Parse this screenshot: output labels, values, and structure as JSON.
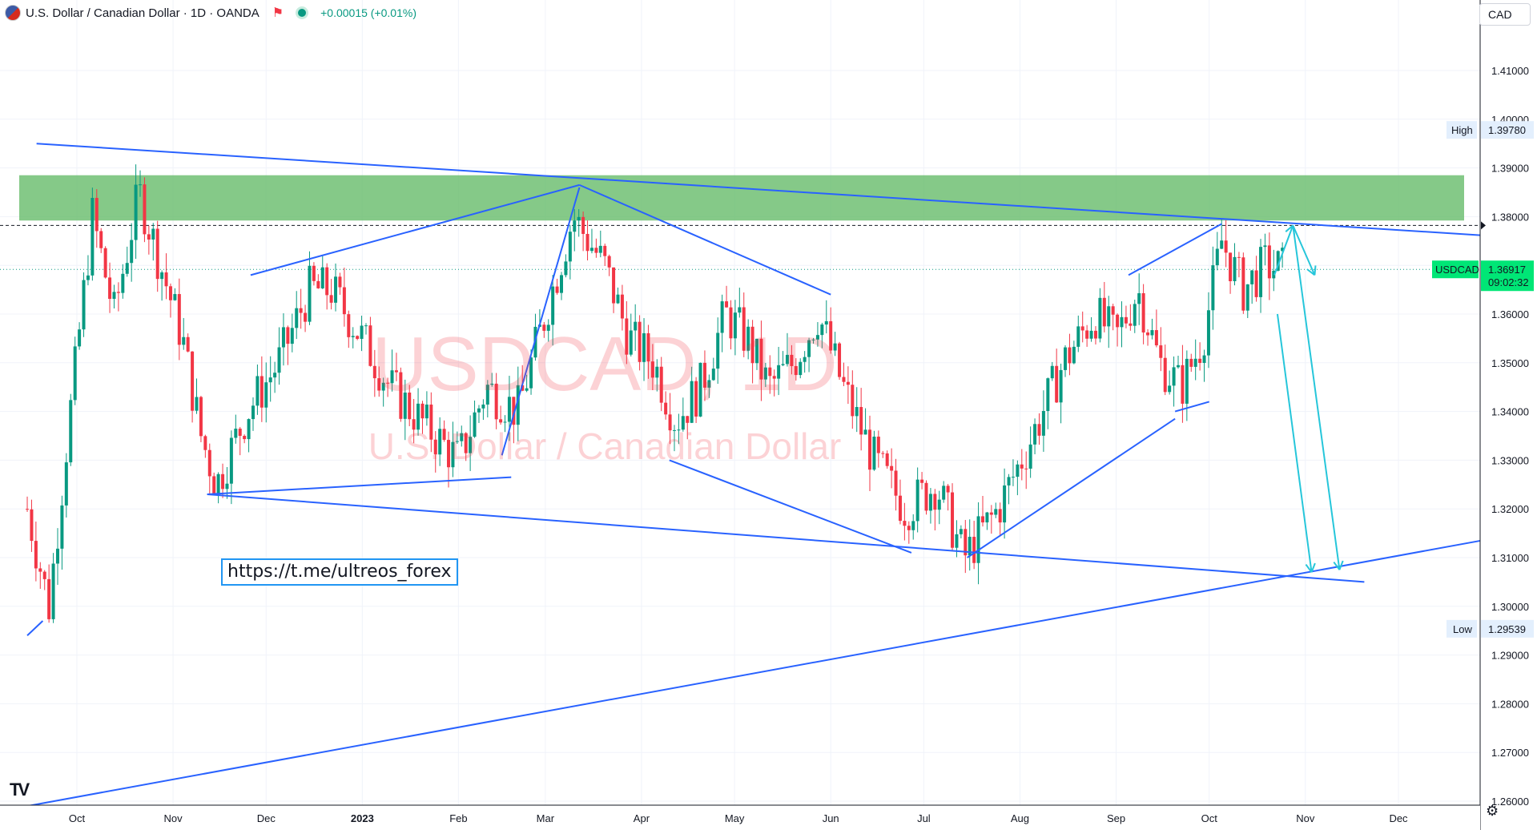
{
  "header": {
    "symbol_title": "U.S. Dollar / Canadian Dollar · 1D · OANDA",
    "change": "+0.00015 (+0.01%)",
    "currency_button": "CAD",
    "flag_icon": "usd-cad-flag-icon",
    "favorite_icon": "flag-marker-icon",
    "status_icon": "market-open-dot-icon"
  },
  "watermark": {
    "symbol": "USDCAD, 1D",
    "description": "U.S. Dollar / Canadian Dollar"
  },
  "annotation_text": "https://t.me/ultreos_forex",
  "logo": "TV",
  "settings_icon": "gear-icon",
  "price_axis": {
    "ticks": [
      "1.41000",
      "1.40000",
      "1.39000",
      "1.38000",
      "1.36000",
      "1.35000",
      "1.34000",
      "1.33000",
      "1.32000",
      "1.31000",
      "1.30000",
      "1.29000",
      "1.28000",
      "1.27000",
      "1.26000"
    ],
    "high_label": "High",
    "high_value": "1.39780",
    "low_label": "Low",
    "low_value": "1.29539",
    "last_symbol": "USDCAD",
    "last_value": "1.36917",
    "countdown": "09:02:32"
  },
  "time_axis": {
    "labels": [
      "Oct",
      "Nov",
      "Dec",
      "2023",
      "Feb",
      "Mar",
      "Apr",
      "May",
      "Jun",
      "Jul",
      "Aug",
      "Sep",
      "Oct",
      "Nov",
      "Dec"
    ]
  },
  "colors": {
    "up": "#089981",
    "down": "#f23645",
    "line": "#2962ff",
    "arrow": "#26c6da",
    "zone": "#66bb6a",
    "last_price": "#00e676"
  },
  "chart_data": {
    "type": "candlestick",
    "symbol": "USDCAD",
    "timeframe": "1D",
    "ylim": [
      1.255,
      1.42
    ],
    "high": 1.3978,
    "low": 1.29539,
    "last": 1.36917,
    "resistance_zone": [
      1.3792,
      1.3885
    ],
    "dashed_level": 1.3782,
    "series_path": [
      {
        "date": "2022-09-15",
        "value": 1.32
      },
      {
        "date": "2022-09-22",
        "value": 1.3
      },
      {
        "date": "2022-09-28",
        "value": 1.335
      },
      {
        "date": "2022-10-06",
        "value": 1.38
      },
      {
        "date": "2022-10-13",
        "value": 1.36
      },
      {
        "date": "2022-10-21",
        "value": 1.385
      },
      {
        "date": "2022-10-28",
        "value": 1.37
      },
      {
        "date": "2022-11-04",
        "value": 1.355
      },
      {
        "date": "2022-11-10",
        "value": 1.335
      },
      {
        "date": "2022-11-15",
        "value": 1.325
      },
      {
        "date": "2022-11-25",
        "value": 1.34
      },
      {
        "date": "2022-12-05",
        "value": 1.35
      },
      {
        "date": "2022-12-15",
        "value": 1.365
      },
      {
        "date": "2022-12-22",
        "value": 1.365
      },
      {
        "date": "2023-01-01",
        "value": 1.355
      },
      {
        "date": "2023-01-10",
        "value": 1.345
      },
      {
        "date": "2023-01-20",
        "value": 1.338
      },
      {
        "date": "2023-02-01",
        "value": 1.33
      },
      {
        "date": "2023-02-10",
        "value": 1.345
      },
      {
        "date": "2023-02-20",
        "value": 1.34
      },
      {
        "date": "2023-03-01",
        "value": 1.36
      },
      {
        "date": "2023-03-10",
        "value": 1.38
      },
      {
        "date": "2023-03-20",
        "value": 1.37
      },
      {
        "date": "2023-03-28",
        "value": 1.355
      },
      {
        "date": "2023-04-05",
        "value": 1.35
      },
      {
        "date": "2023-04-12",
        "value": 1.338
      },
      {
        "date": "2023-04-20",
        "value": 1.345
      },
      {
        "date": "2023-04-28",
        "value": 1.36
      },
      {
        "date": "2023-05-05",
        "value": 1.355
      },
      {
        "date": "2023-05-12",
        "value": 1.345
      },
      {
        "date": "2023-05-20",
        "value": 1.35
      },
      {
        "date": "2023-05-28",
        "value": 1.36
      },
      {
        "date": "2023-06-05",
        "value": 1.345
      },
      {
        "date": "2023-06-15",
        "value": 1.33
      },
      {
        "date": "2023-06-25",
        "value": 1.32
      },
      {
        "date": "2023-07-05",
        "value": 1.325
      },
      {
        "date": "2023-07-14",
        "value": 1.31
      },
      {
        "date": "2023-07-25",
        "value": 1.32
      },
      {
        "date": "2023-08-05",
        "value": 1.335
      },
      {
        "date": "2023-08-15",
        "value": 1.35
      },
      {
        "date": "2023-08-25",
        "value": 1.36
      },
      {
        "date": "2023-09-01",
        "value": 1.355
      },
      {
        "date": "2023-09-08",
        "value": 1.365
      },
      {
        "date": "2023-09-15",
        "value": 1.35
      },
      {
        "date": "2023-09-22",
        "value": 1.345
      },
      {
        "date": "2023-09-29",
        "value": 1.355
      },
      {
        "date": "2023-10-05",
        "value": 1.375
      },
      {
        "date": "2023-10-12",
        "value": 1.365
      },
      {
        "date": "2023-10-19",
        "value": 1.37
      },
      {
        "date": "2023-10-25",
        "value": 1.3692
      }
    ],
    "trendlines": [
      {
        "from": {
          "date": "2022-09-18",
          "value": 1.395
        },
        "to": {
          "date": "2024-01-01",
          "value": 1.376
        }
      },
      {
        "from": {
          "date": "2022-11-12",
          "value": 1.323
        },
        "to": {
          "date": "2023-11-20",
          "value": 1.305
        }
      },
      {
        "from": {
          "date": "2022-09-15",
          "value": 1.259
        },
        "to": {
          "date": "2024-01-01",
          "value": 1.314
        }
      },
      {
        "from": {
          "date": "2022-09-15",
          "value": 1.294
        },
        "to": {
          "date": "2022-09-20",
          "value": 1.297
        }
      },
      {
        "from": {
          "date": "2022-11-12",
          "value": 1.323
        },
        "to": {
          "date": "2023-02-18",
          "value": 1.3265
        }
      },
      {
        "from": {
          "date": "2022-11-26",
          "value": 1.368
        },
        "to": {
          "date": "2023-03-12",
          "value": 1.3865
        }
      },
      {
        "from": {
          "date": "2023-03-12",
          "value": 1.3865
        },
        "to": {
          "date": "2023-06-01",
          "value": 1.364
        }
      },
      {
        "from": {
          "date": "2023-02-15",
          "value": 1.331
        },
        "to": {
          "date": "2023-03-12",
          "value": 1.386
        }
      },
      {
        "from": {
          "date": "2023-04-10",
          "value": 1.33
        },
        "to": {
          "date": "2023-06-27",
          "value": 1.311
        }
      },
      {
        "from": {
          "date": "2023-07-15",
          "value": 1.31
        },
        "to": {
          "date": "2023-09-20",
          "value": 1.3385
        }
      },
      {
        "from": {
          "date": "2023-09-05",
          "value": 1.368
        },
        "to": {
          "date": "2023-10-05",
          "value": 1.3785
        }
      },
      {
        "from": {
          "date": "2023-09-20",
          "value": 1.34
        },
        "to": {
          "date": "2023-10-01",
          "value": 1.342
        }
      }
    ],
    "projection_arrows": [
      {
        "from": {
          "date": "2023-10-22",
          "value": 1.368
        },
        "to": {
          "date": "2023-10-28",
          "value": 1.3782
        }
      },
      {
        "from": {
          "date": "2023-10-28",
          "value": 1.3782
        },
        "to": {
          "date": "2023-11-04",
          "value": 1.368
        }
      },
      {
        "from": {
          "date": "2023-10-23",
          "value": 1.36
        },
        "to": {
          "date": "2023-11-03",
          "value": 1.307
        }
      },
      {
        "from": {
          "date": "2023-10-28",
          "value": 1.3782
        },
        "to": {
          "date": "2023-11-12",
          "value": 1.3075
        }
      }
    ]
  }
}
